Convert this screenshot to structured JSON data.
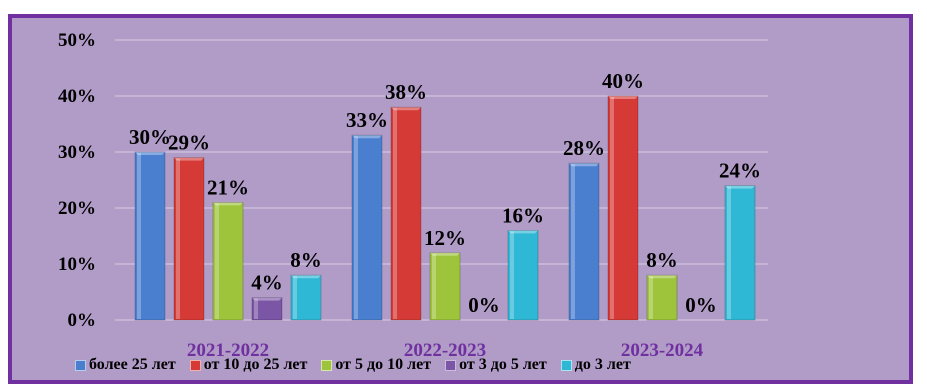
{
  "chart_data": {
    "type": "bar",
    "categories": [
      "2021-2022",
      "2022-2023",
      "2023-2024"
    ],
    "series": [
      {
        "name": "более 25 лет",
        "values": [
          30,
          33,
          28
        ],
        "labels": [
          "30%",
          "33%",
          "28%"
        ],
        "color": "#4a7fd0"
      },
      {
        "name": "от 10 до 25 лет",
        "values": [
          29,
          38,
          40
        ],
        "labels": [
          "29%",
          "38%",
          "40%"
        ],
        "color": "#d63a36"
      },
      {
        "name": "от 5 до 10 лет",
        "values": [
          21,
          12,
          8
        ],
        "labels": [
          "21%",
          "12%",
          "8%"
        ],
        "color": "#9dc43a"
      },
      {
        "name": "от 3 до 5 лет",
        "values": [
          4,
          0,
          0
        ],
        "labels": [
          "4%",
          "0%",
          "0%"
        ],
        "color": "#7b55a6"
      },
      {
        "name": "до 3 лет",
        "values": [
          8,
          16,
          24
        ],
        "labels": [
          "8%",
          "16%",
          "24%"
        ],
        "color": "#2fb8d6"
      }
    ],
    "yticks": [
      "0%",
      "10%",
      "20%",
      "30%",
      "40%",
      "50%"
    ],
    "ylim": [
      0,
      50
    ],
    "grid": true,
    "legend_position": "bottom",
    "category_label_color": "#7030a0"
  }
}
